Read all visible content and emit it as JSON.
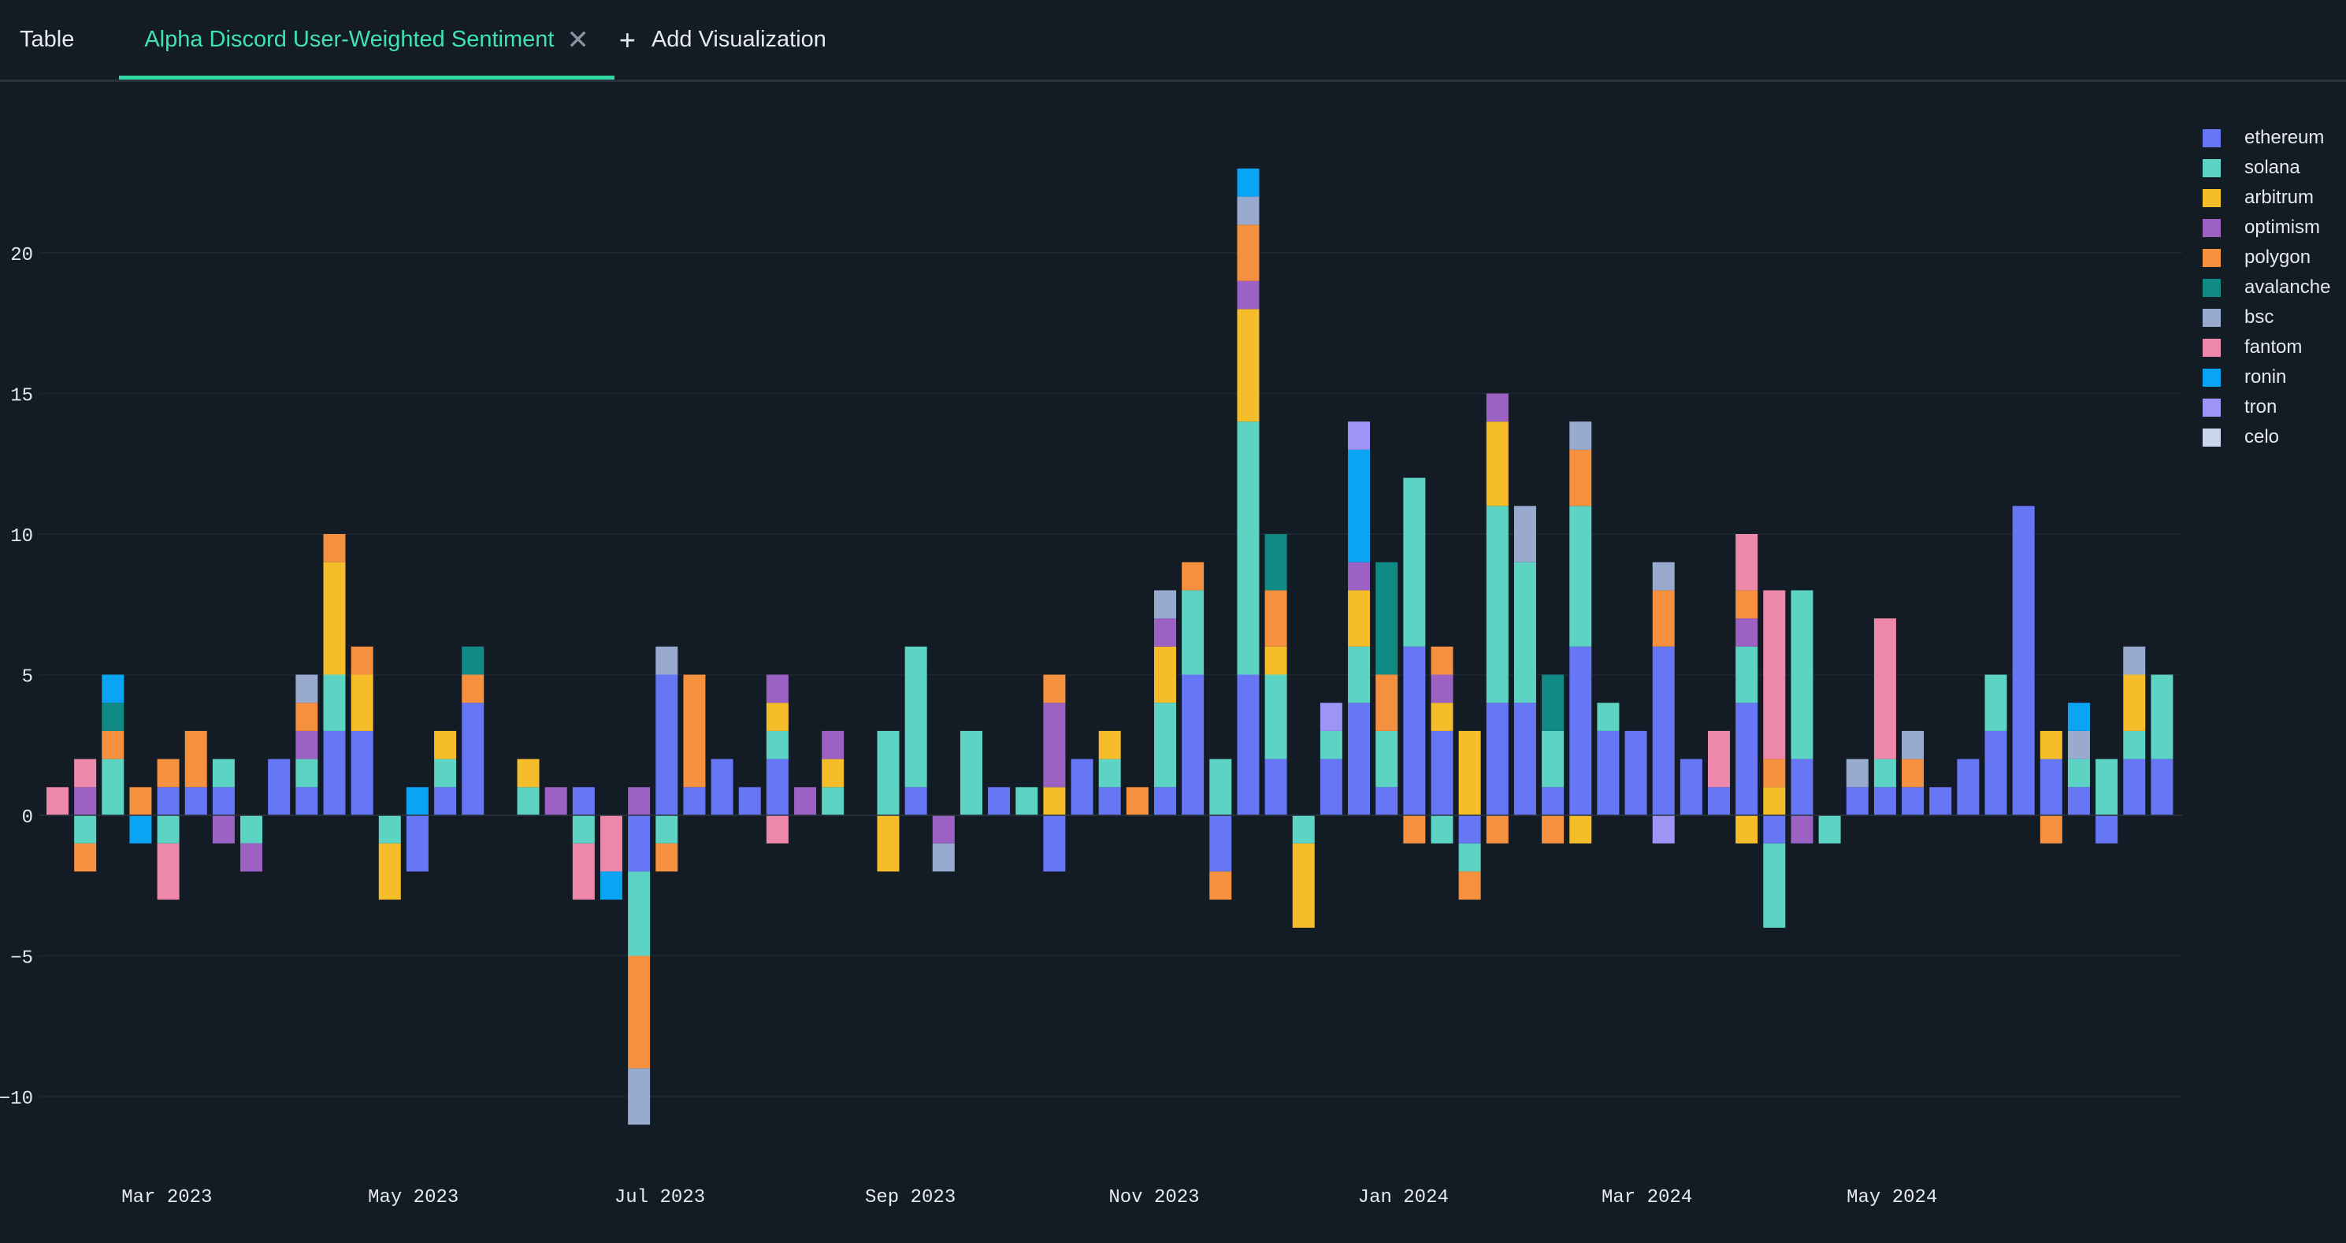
{
  "tabs": {
    "table_label": "Table",
    "active_label": "Alpha Discord User-Weighted Sentiment",
    "add_label": "Add Visualization"
  },
  "colors": {
    "background": "#131b25",
    "accent": "#2fd7a2",
    "ethereum": "#6676f5",
    "solana": "#5dd3c3",
    "arbitrum": "#f5bd2a",
    "optimism": "#9b62c4",
    "polygon": "#f5903e",
    "avalanche": "#0f8a84",
    "bsc": "#98abcf",
    "fantom": "#ee88ab",
    "ronin": "#0aa4f5",
    "tron": "#9d94f5",
    "celo": "#cad6ec"
  },
  "chart_data": {
    "type": "bar",
    "stacked": true,
    "title": "",
    "xlabel": "",
    "ylabel": "",
    "ylim": [
      -12,
      25
    ],
    "yticks": [
      -10,
      -5,
      0,
      5,
      10,
      15,
      20
    ],
    "xticks": [
      "Mar 2023",
      "May 2023",
      "Jul 2023",
      "Sep 2023",
      "Nov 2023",
      "Jan 2024",
      "Mar 2024",
      "May 2024"
    ],
    "grid": "horizontal",
    "legend_position": "top-right",
    "series_names": [
      "ethereum",
      "solana",
      "arbitrum",
      "optimism",
      "polygon",
      "avalanche",
      "bsc",
      "fantom",
      "ronin",
      "tron",
      "celo"
    ],
    "weeks": [
      {
        "fantom": 1
      },
      {
        "optimism": 1,
        "fantom": 1,
        "solana": -1,
        "polygon": -1
      },
      {
        "solana": 2,
        "polygon": 1,
        "avalanche": 1,
        "ronin": 1
      },
      {
        "polygon": 1,
        "ronin": -1
      },
      {
        "ethereum": 1,
        "polygon": 1,
        "solana": -1,
        "fantom": -2
      },
      {
        "ethereum": 1,
        "polygon": 2
      },
      {
        "ethereum": 1,
        "solana": 1,
        "optimism": -1
      },
      {
        "solana": -1,
        "optimism": -1
      },
      {
        "ethereum": 2
      },
      {
        "ethereum": 1,
        "solana": 1,
        "optimism": 1,
        "polygon": 1,
        "bsc": 1
      },
      {
        "ethereum": 3,
        "solana": 2,
        "arbitrum": 4,
        "polygon": 1
      },
      {
        "ethereum": 3,
        "arbitrum": 2,
        "polygon": 1
      },
      {
        "solana": -1,
        "arbitrum": -2
      },
      {
        "ronin": 1,
        "ethereum": -2
      },
      {
        "ethereum": 1,
        "solana": 1,
        "arbitrum": 1
      },
      {
        "ethereum": 4,
        "polygon": 1,
        "avalanche": 1
      },
      {},
      {
        "solana": 1,
        "arbitrum": 1
      },
      {
        "optimism": 1
      },
      {
        "ethereum": 1,
        "solana": -1,
        "fantom": -2
      },
      {
        "fantom": -2,
        "ronin": -1
      },
      {
        "optimism": 1,
        "ethereum": -2,
        "solana": -3,
        "polygon": -4,
        "bsc": -2
      },
      {
        "ethereum": 5,
        "bsc": 1,
        "solana": -1,
        "polygon": -1
      },
      {
        "ethereum": 1,
        "polygon": 4
      },
      {
        "ethereum": 2
      },
      {
        "ethereum": 1
      },
      {
        "ethereum": 2,
        "solana": 1,
        "arbitrum": 1,
        "optimism": 1,
        "fantom": -1
      },
      {
        "optimism": 1
      },
      {
        "solana": 1,
        "arbitrum": 1,
        "optimism": 1
      },
      {},
      {
        "solana": 3,
        "arbitrum": -2
      },
      {
        "ethereum": 1,
        "solana": 5
      },
      {
        "optimism": -1,
        "bsc": -1
      },
      {
        "solana": 3
      },
      {
        "ethereum": 1
      },
      {
        "solana": 1
      },
      {
        "arbitrum": 1,
        "optimism": 3,
        "polygon": 1,
        "ethereum": -2
      },
      {
        "ethereum": 2
      },
      {
        "ethereum": 1,
        "solana": 1,
        "arbitrum": 1
      },
      {
        "polygon": 1
      },
      {
        "ethereum": 1,
        "solana": 3,
        "arbitrum": 2,
        "optimism": 1,
        "bsc": 1
      },
      {
        "ethereum": 5,
        "solana": 3,
        "polygon": 1
      },
      {
        "solana": 2,
        "ethereum": -2,
        "polygon": -1
      },
      {
        "ethereum": 5,
        "solana": 9,
        "arbitrum": 4,
        "optimism": 1,
        "polygon": 2,
        "bsc": 1,
        "ronin": 1
      },
      {
        "ethereum": 2,
        "solana": 3,
        "arbitrum": 1,
        "polygon": 2,
        "avalanche": 2
      },
      {
        "solana": -1,
        "arbitrum": -3
      },
      {
        "ethereum": 2,
        "solana": 1,
        "tron": 1
      },
      {
        "ethereum": 4,
        "solana": 2,
        "arbitrum": 2,
        "optimism": 1,
        "ronin": 4,
        "tron": 1
      },
      {
        "ethereum": 1,
        "solana": 2,
        "polygon": 2,
        "avalanche": 4
      },
      {
        "ethereum": 6,
        "solana": 6,
        "polygon": -1
      },
      {
        "ethereum": 3,
        "arbitrum": 1,
        "optimism": 1,
        "polygon": 1,
        "solana": -1
      },
      {
        "arbitrum": 3,
        "ethereum": -1,
        "solana": -1,
        "polygon": -1
      },
      {
        "ethereum": 4,
        "solana": 7,
        "arbitrum": 3,
        "optimism": 1,
        "polygon": -1
      },
      {
        "ethereum": 4,
        "solana": 5,
        "bsc": 2
      },
      {
        "ethereum": 1,
        "solana": 2,
        "avalanche": 2,
        "polygon": -1
      },
      {
        "ethereum": 6,
        "solana": 5,
        "polygon": 2,
        "bsc": 1,
        "arbitrum": -1
      },
      {
        "ethereum": 3,
        "solana": 1
      },
      {
        "ethereum": 3
      },
      {
        "ethereum": 6,
        "polygon": 2,
        "bsc": 1,
        "tron": -1
      },
      {
        "ethereum": 2
      },
      {
        "ethereum": 1,
        "fantom": 2
      },
      {
        "ethereum": 4,
        "solana": 2,
        "optimism": 1,
        "polygon": 1,
        "fantom": 2,
        "arbitrum": -1
      },
      {
        "arbitrum": 1,
        "polygon": 1,
        "fantom": 6,
        "ethereum": -1,
        "solana": -3
      },
      {
        "ethereum": 2,
        "solana": 6,
        "optimism": -1
      },
      {
        "solana": -1
      },
      {
        "ethereum": 1,
        "bsc": 1
      },
      {
        "ethereum": 1,
        "solana": 1,
        "fantom": 5
      },
      {
        "ethereum": 1,
        "polygon": 1,
        "bsc": 1
      },
      {
        "ethereum": 1
      },
      {
        "ethereum": 2
      },
      {
        "ethereum": 3,
        "solana": 2
      },
      {
        "ethereum": 11
      },
      {
        "ethereum": 2,
        "arbitrum": 1,
        "polygon": -1
      },
      {
        "ethereum": 1,
        "solana": 1,
        "bsc": 1,
        "ronin": 1
      },
      {
        "solana": 2,
        "ethereum": -1
      },
      {
        "ethereum": 2,
        "solana": 1,
        "arbitrum": 2,
        "bsc": 1
      },
      {
        "ethereum": 2,
        "solana": 3
      }
    ]
  }
}
